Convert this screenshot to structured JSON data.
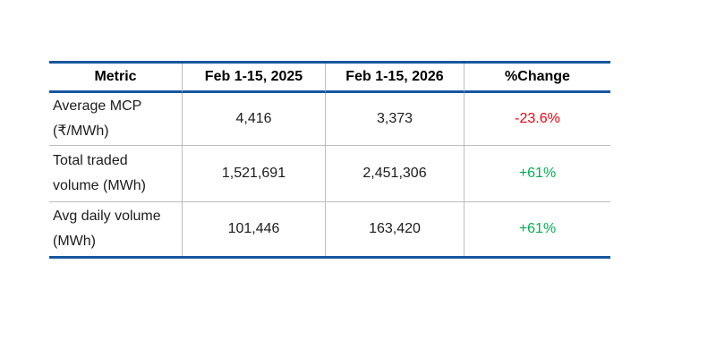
{
  "colors": {
    "table_border_navy": "#1656A0",
    "row_divider_gray": "#BDBDBD",
    "header_text": "#000000",
    "body_text": "#1C1C1C",
    "negative_red": "#F40009",
    "positive_green": "#00B050",
    "background": "#FFFFFF"
  },
  "table": {
    "columns": [
      {
        "label": "Metric"
      },
      {
        "label": "Feb 1-15, 2025"
      },
      {
        "label": "Feb 1-15, 2026"
      },
      {
        "label": "%Change"
      }
    ],
    "rows": [
      {
        "metric_line1": "Average MCP",
        "metric_line2": "(₹/MWh)",
        "val_2025": "4,416",
        "val_2026": "3,373",
        "change": "-23.6%",
        "change_color": "#F40009"
      },
      {
        "metric_line1": "Total traded",
        "metric_line2": "volume (MWh)",
        "val_2025": "1,521,691",
        "val_2026": "2,451,306",
        "change": "+61%",
        "change_color": "#00B050"
      },
      {
        "metric_line1": "Avg daily volume",
        "metric_line2": "(MWh)",
        "val_2025": "101,446",
        "val_2026": "163,420",
        "change": "+61%",
        "change_color": "#00B050"
      }
    ]
  },
  "chart_data": {
    "type": "table",
    "title": "",
    "columns": [
      "Metric",
      "Feb 1-15, 2025",
      "Feb 1-15, 2026",
      "%Change"
    ],
    "rows": [
      [
        "Average MCP (₹/MWh)",
        4416,
        3373,
        "-23.6%"
      ],
      [
        "Total traded volume (MWh)",
        1521691,
        2451306,
        "+61%"
      ],
      [
        "Avg daily volume (MWh)",
        101446,
        163420,
        "+61%"
      ]
    ],
    "notes": "Negative change rendered red, positive change rendered green"
  }
}
